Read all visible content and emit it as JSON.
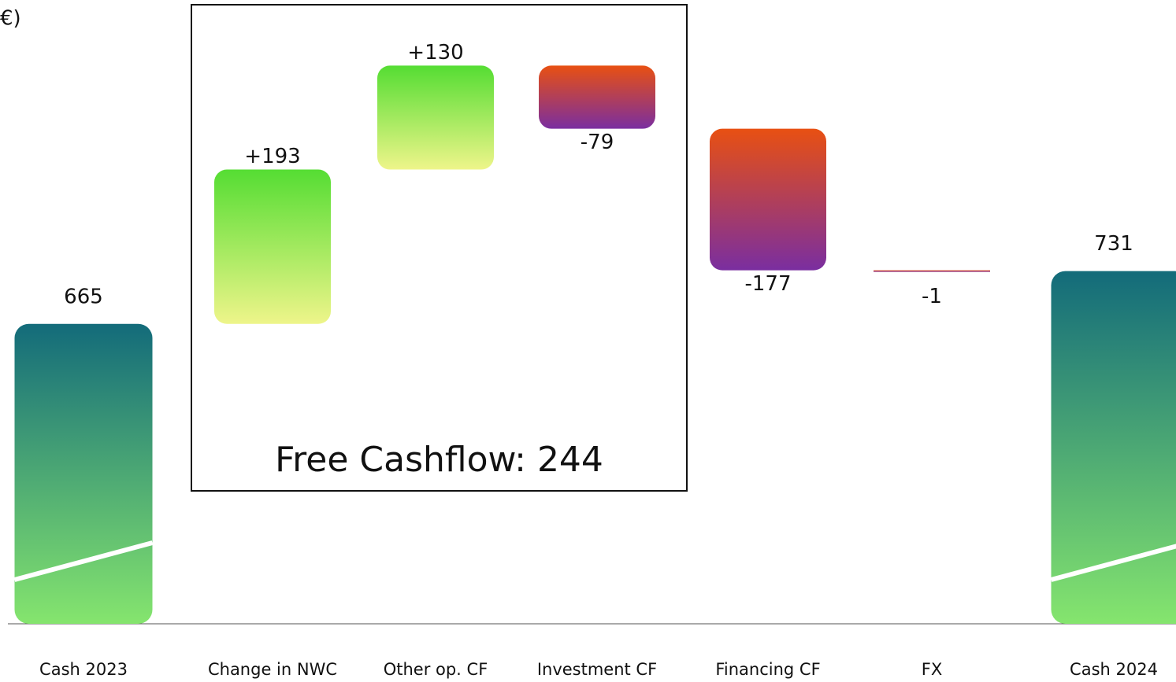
{
  "chart_data": {
    "type": "waterfall",
    "title": "€)",
    "categories": [
      "Cash 2023",
      "Change in NWC",
      "Other op. CF",
      "Investment CF",
      "Financing CF",
      "FX",
      "Cash 2024"
    ],
    "measure": [
      "total",
      "relative",
      "relative",
      "relative",
      "relative",
      "relative",
      "total"
    ],
    "values": [
      665,
      193,
      130,
      -79,
      -177,
      -1,
      731
    ],
    "value_labels": [
      "665",
      "+193",
      "+130",
      "-79",
      "-177",
      "-1",
      "731"
    ],
    "total_color": [
      "#136b7a",
      "#85e56e"
    ],
    "increase_color": [
      "#55dd33",
      "#eef58a"
    ],
    "decrease_color": [
      "#e85012",
      "#7a2ea0"
    ],
    "ylim": [
      290,
      1070
    ],
    "broken_axis": true,
    "annotation": "Free Cashflow: 244"
  }
}
